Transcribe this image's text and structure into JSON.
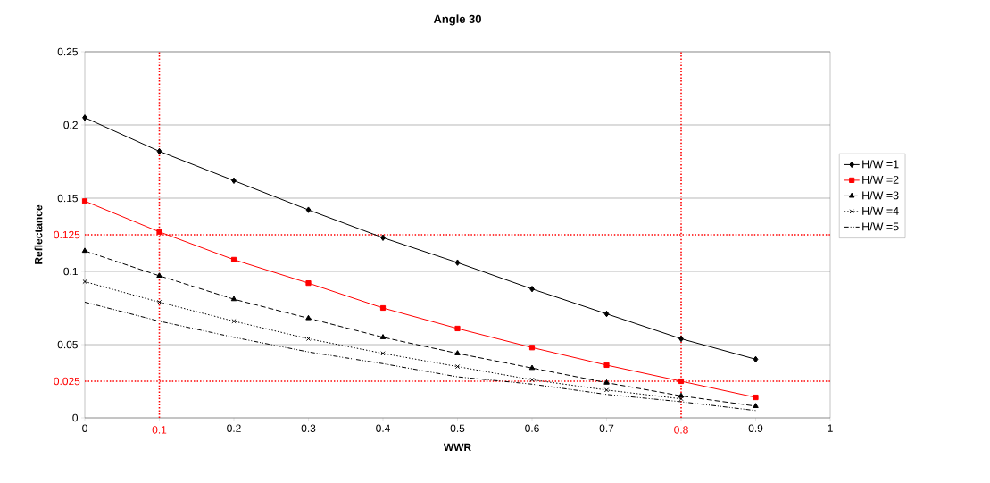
{
  "chart_data": {
    "type": "line",
    "title": "Angle 30",
    "xlabel": "WWR",
    "ylabel": "Reflectance",
    "x": [
      0,
      0.1,
      0.2,
      0.3,
      0.4,
      0.5,
      0.6,
      0.7,
      0.8,
      0.9
    ],
    "series": [
      {
        "name": "H/W =1",
        "color": "#000000",
        "marker": "diamond",
        "line_style": "solid",
        "values": [
          0.205,
          0.182,
          0.162,
          0.142,
          0.123,
          0.106,
          0.088,
          0.071,
          0.054,
          0.04
        ]
      },
      {
        "name": "H/W =2",
        "color": "#ff0000",
        "marker": "square",
        "line_style": "solid",
        "values": [
          0.148,
          0.127,
          0.108,
          0.092,
          0.075,
          0.061,
          0.048,
          0.036,
          0.025,
          0.014
        ]
      },
      {
        "name": "H/W =3",
        "color": "#000000",
        "marker": "triangle",
        "line_style": "dashed",
        "values": [
          0.114,
          0.097,
          0.081,
          0.068,
          0.055,
          0.044,
          0.034,
          0.024,
          0.015,
          0.008
        ]
      },
      {
        "name": "H/W =4",
        "color": "#000000",
        "marker": "cross",
        "line_style": "dotted",
        "values": [
          0.093,
          0.079,
          0.066,
          0.054,
          0.044,
          0.035,
          0.026,
          0.019,
          0.013,
          null
        ]
      },
      {
        "name": "H/W =5",
        "color": "#000000",
        "marker": "none",
        "line_style": "dashdot",
        "values": [
          0.079,
          0.066,
          0.055,
          0.045,
          0.037,
          0.028,
          0.023,
          0.016,
          0.011,
          0.005
        ]
      }
    ],
    "xlim": [
      0,
      1
    ],
    "ylim": [
      0,
      0.25
    ],
    "xticks": [
      0,
      {
        "value": 0.1,
        "label": null
      },
      0.2,
      0.3,
      0.4,
      0.5,
      0.6,
      0.7,
      {
        "value": 0.8,
        "label": null
      },
      0.9,
      1
    ],
    "yticks": [
      0,
      0.05,
      0.1,
      0.15,
      0.2,
      0.25
    ],
    "ref_lines": [
      {
        "axis": "y",
        "value": 0.125,
        "label": "0.125",
        "color": "#ff0000",
        "line_style": "dotted"
      },
      {
        "axis": "y",
        "value": 0.025,
        "label": "0.025",
        "color": "#ff0000",
        "line_style": "dotted"
      },
      {
        "axis": "x",
        "value": 0.1,
        "label": "0.1",
        "color": "#ff0000",
        "line_style": "dotted"
      },
      {
        "axis": "x",
        "value": 0.8,
        "label": "0.8",
        "color": "#ff0000",
        "line_style": "dotted"
      }
    ],
    "grid": "y",
    "legend": "right"
  }
}
